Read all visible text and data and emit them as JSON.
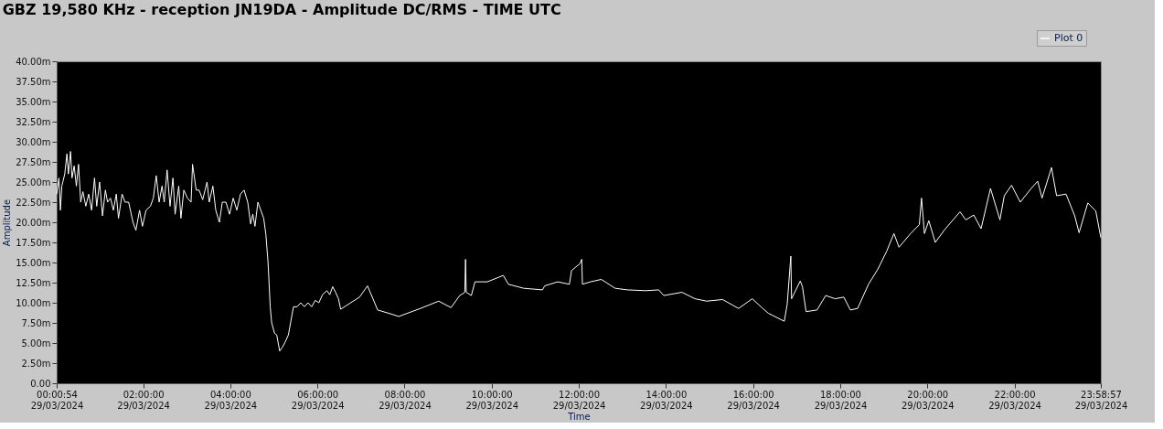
{
  "chart_data": {
    "type": "line",
    "title": "GBZ  19,580 KHz - reception JN19DA -  Amplitude DC/RMS   - TIME UTC",
    "xlabel": "Time",
    "ylabel": "Amplitude",
    "xlim": [
      "2024-03-29T00:00:54",
      "2024-03-29T23:58:57"
    ],
    "ylim": [
      0,
      40
    ],
    "xticks": [
      {
        "value": "2024-03-29T00:00:54",
        "label": "00:00:54\n29/03/2024"
      },
      {
        "value": "2024-03-29T02:00",
        "label": "02:00:00\n29/03/2024"
      },
      {
        "value": "2024-03-29T04:00",
        "label": "04:00:00\n29/03/2024"
      },
      {
        "value": "2024-03-29T06:00",
        "label": "06:00:00\n29/03/2024"
      },
      {
        "value": "2024-03-29T08:00",
        "label": "08:00:00\n29/03/2024"
      },
      {
        "value": "2024-03-29T10:00",
        "label": "10:00:00\n29/03/2024"
      },
      {
        "value": "2024-03-29T12:00",
        "label": "12:00:00\n29/03/2024"
      },
      {
        "value": "2024-03-29T14:00",
        "label": "14:00:00\n29/03/2024"
      },
      {
        "value": "2024-03-29T16:00",
        "label": "16:00:00\n29/03/2024"
      },
      {
        "value": "2024-03-29T18:00",
        "label": "18:00:00\n29/03/2024"
      },
      {
        "value": "2024-03-29T20:00",
        "label": "20:00:00\n29/03/2024"
      },
      {
        "value": "2024-03-29T22:00",
        "label": "22:00:00\n29/03/2024"
      },
      {
        "value": "2024-03-29T23:58:57",
        "label": "23:58:57\n29/03/2024"
      }
    ],
    "yticks": [
      {
        "value": 0,
        "label": "0.00"
      },
      {
        "value": 2.5,
        "label": "2.50m"
      },
      {
        "value": 5,
        "label": "5.00m"
      },
      {
        "value": 7.5,
        "label": "7.50m"
      },
      {
        "value": 10,
        "label": "10.00m"
      },
      {
        "value": 12.5,
        "label": "12.50m"
      },
      {
        "value": 15,
        "label": "15.00m"
      },
      {
        "value": 17.5,
        "label": "17.50m"
      },
      {
        "value": 20,
        "label": "20.00m"
      },
      {
        "value": 22.5,
        "label": "22.50m"
      },
      {
        "value": 25,
        "label": "25.00m"
      },
      {
        "value": 27.5,
        "label": "27.50m"
      },
      {
        "value": 30,
        "label": "30.00m"
      },
      {
        "value": 32.5,
        "label": "32.50m"
      },
      {
        "value": 35,
        "label": "35.00m"
      },
      {
        "value": 37.5,
        "label": "37.50m"
      },
      {
        "value": 40,
        "label": "40.00m"
      }
    ],
    "grid": false,
    "legend": "top right",
    "marker": "none",
    "line_style": "solid",
    "series": [
      {
        "name": "Plot 0",
        "color": "#ffffff",
        "x": [
          "2024-03-29T00:00:54",
          "2024-03-29T00:04",
          "2024-03-29T00:06",
          "2024-03-29T00:08",
          "2024-03-29T00:12",
          "2024-03-29T00:15",
          "2024-03-29T00:17",
          "2024-03-29T00:20",
          "2024-03-29T00:22",
          "2024-03-29T00:25",
          "2024-03-29T00:28",
          "2024-03-29T00:31",
          "2024-03-29T00:34",
          "2024-03-29T00:37",
          "2024-03-29T00:41",
          "2024-03-29T00:45",
          "2024-03-29T00:49",
          "2024-03-29T00:53",
          "2024-03-29T00:56",
          "2024-03-29T01:00",
          "2024-03-29T01:04",
          "2024-03-29T01:08",
          "2024-03-29T01:11",
          "2024-03-29T01:15",
          "2024-03-29T01:19",
          "2024-03-29T01:23",
          "2024-03-29T01:26",
          "2024-03-29T01:31",
          "2024-03-29T01:35",
          "2024-03-29T01:40",
          "2024-03-29T01:46",
          "2024-03-29T01:50",
          "2024-03-29T01:55",
          "2024-03-29T01:59",
          "2024-03-29T02:04",
          "2024-03-29T02:10",
          "2024-03-29T02:14",
          "2024-03-29T02:18",
          "2024-03-29T02:22",
          "2024-03-29T02:26",
          "2024-03-29T02:29",
          "2024-03-29T02:33",
          "2024-03-29T02:37",
          "2024-03-29T02:41",
          "2024-03-29T02:44",
          "2024-03-29T02:49",
          "2024-03-29T02:52",
          "2024-03-29T02:56",
          "2024-03-29T03:01",
          "2024-03-29T03:06",
          "2024-03-29T03:08",
          "2024-03-29T03:13",
          "2024-03-29T03:17",
          "2024-03-29T03:22",
          "2024-03-29T03:28",
          "2024-03-29T03:31",
          "2024-03-29T03:36",
          "2024-03-29T03:40",
          "2024-03-29T03:45",
          "2024-03-29T03:49",
          "2024-03-29T03:54",
          "2024-03-29T03:59",
          "2024-03-29T04:04",
          "2024-03-29T04:09",
          "2024-03-29T04:14",
          "2024-03-29T04:19",
          "2024-03-29T04:24",
          "2024-03-29T04:28",
          "2024-03-29T04:31",
          "2024-03-29T04:34",
          "2024-03-29T04:38",
          "2024-03-29T04:42",
          "2024-03-29T04:46",
          "2024-03-29T04:49",
          "2024-03-29T04:52",
          "2024-03-29T04:55",
          "2024-03-29T04:57",
          "2024-03-29T05:01",
          "2024-03-29T05:04",
          "2024-03-29T05:08",
          "2024-03-29T05:12",
          "2024-03-29T05:16",
          "2024-03-29T05:20",
          "2024-03-29T05:23",
          "2024-03-29T05:27",
          "2024-03-29T05:32",
          "2024-03-29T05:37",
          "2024-03-29T05:42",
          "2024-03-29T05:47",
          "2024-03-29T05:52",
          "2024-03-29T05:57",
          "2024-03-29T06:02",
          "2024-03-29T06:07",
          "2024-03-29T06:13",
          "2024-03-29T06:17",
          "2024-03-29T06:21",
          "2024-03-29T06:25",
          "2024-03-29T06:29",
          "2024-03-29T06:32",
          "2024-03-29T06:58",
          "2024-03-29T07:09",
          "2024-03-29T07:23",
          "2024-03-29T07:38",
          "2024-03-29T07:52",
          "2024-03-29T08:22",
          "2024-03-29T08:47",
          "2024-03-29T09:04",
          "2024-03-29T09:16",
          "2024-03-29T09:23",
          "2024-03-29T09:24",
          "2024-03-29T09:25",
          "2024-03-29T09:32",
          "2024-03-29T09:37",
          "2024-03-29T09:54",
          "2024-03-29T10:16",
          "2024-03-29T10:23",
          "2024-03-29T10:44",
          "2024-03-29T11:10",
          "2024-03-29T11:13",
          "2024-03-29T11:31",
          "2024-03-29T11:47",
          "2024-03-29T11:50",
          "2024-03-29T12:02",
          "2024-03-29T12:04",
          "2024-03-29T12:05",
          "2024-03-29T12:16",
          "2024-03-29T12:31",
          "2024-03-29T12:50",
          "2024-03-29T13:07",
          "2024-03-29T13:32",
          "2024-03-29T13:50",
          "2024-03-29T13:57",
          "2024-03-29T14:22",
          "2024-03-29T14:40",
          "2024-03-29T14:56",
          "2024-03-29T15:18",
          "2024-03-29T15:40",
          "2024-03-29T15:59",
          "2024-03-29T16:12",
          "2024-03-29T16:21",
          "2024-03-29T16:43",
          "2024-03-29T16:47",
          "2024-03-29T16:52",
          "2024-03-29T16:53",
          "2024-03-29T17:05",
          "2024-03-29T17:08",
          "2024-03-29T17:13",
          "2024-03-29T17:28",
          "2024-03-29T17:40",
          "2024-03-29T17:53",
          "2024-03-29T18:05",
          "2024-03-29T18:14",
          "2024-03-29T18:24",
          "2024-03-29T18:39",
          "2024-03-29T18:52",
          "2024-03-29T19:04",
          "2024-03-29T19:14",
          "2024-03-29T19:21",
          "2024-03-29T19:37",
          "2024-03-29T19:49",
          "2024-03-29T19:52",
          "2024-03-29T19:56",
          "2024-03-29T20:02",
          "2024-03-29T20:11",
          "2024-03-29T20:24",
          "2024-03-29T20:45",
          "2024-03-29T20:53",
          "2024-03-29T21:04",
          "2024-03-29T21:14",
          "2024-03-29T21:27",
          "2024-03-29T21:40",
          "2024-03-29T21:46",
          "2024-03-29T21:56",
          "2024-03-29T22:08",
          "2024-03-29T22:23",
          "2024-03-29T22:32",
          "2024-03-29T22:38",
          "2024-03-29T22:51",
          "2024-03-29T22:58",
          "2024-03-29T23:11",
          "2024-03-29T23:23",
          "2024-03-29T23:29",
          "2024-03-29T23:41",
          "2024-03-29T23:52",
          "2024-03-29T23:58:57"
        ],
        "values": [
          23.5,
          25.5,
          21.5,
          24.5,
          26,
          28.5,
          26,
          28.8,
          25.5,
          27,
          24.5,
          27.2,
          22.5,
          23.8,
          22,
          23.5,
          21.5,
          25.5,
          22,
          25,
          20.8,
          24,
          22.5,
          23,
          21.5,
          23.5,
          20.5,
          23.5,
          22.5,
          22.5,
          20,
          19,
          21.5,
          19.5,
          21.5,
          22,
          23,
          25.8,
          22.5,
          24.5,
          22.5,
          26.5,
          22,
          25.5,
          21,
          24.5,
          20.5,
          24,
          23,
          22.5,
          27.2,
          24,
          24,
          22.8,
          25,
          22.5,
          24.5,
          21.5,
          20,
          22.5,
          22.5,
          21,
          23,
          21.5,
          23.5,
          24,
          22.5,
          19.8,
          21,
          19.5,
          22.5,
          21.5,
          20.5,
          18.5,
          15,
          9.5,
          7.5,
          6.2,
          6,
          4,
          4.5,
          5.2,
          6,
          7.5,
          9.5,
          9.5,
          10,
          9.5,
          10,
          9.5,
          10.3,
          10,
          11,
          11.5,
          11,
          12,
          11.3,
          10.5,
          9.2,
          10.7,
          12.1,
          9.1,
          8.7,
          8.3,
          9.3,
          10.2,
          9.4,
          10.9,
          11.3,
          15.4,
          11.3,
          10.9,
          12.6,
          12.6,
          13.4,
          12.3,
          11.8,
          11.6,
          12.1,
          12.6,
          12.3,
          14,
          14.9,
          15.4,
          12.3,
          12.6,
          12.9,
          11.8,
          11.6,
          11.5,
          11.6,
          10.9,
          11.3,
          10.5,
          10.2,
          10.4,
          9.3,
          10.5,
          9.4,
          8.7,
          7.7,
          9.8,
          15.8,
          10.5,
          12.7,
          12,
          8.9,
          9.1,
          10.9,
          10.5,
          10.7,
          9.1,
          9.3,
          12.3,
          14.2,
          16.4,
          18.6,
          16.9,
          18.6,
          19.7,
          23,
          18.6,
          20.2,
          17.5,
          19.1,
          21.3,
          20.3,
          20.9,
          19.2,
          24.2,
          20.3,
          23.3,
          24.6,
          22.5,
          24.2,
          25.1,
          23,
          26.8,
          23.3,
          23.5,
          20.8,
          18.7,
          22.4,
          21.4,
          18.1
        ]
      }
    ]
  }
}
